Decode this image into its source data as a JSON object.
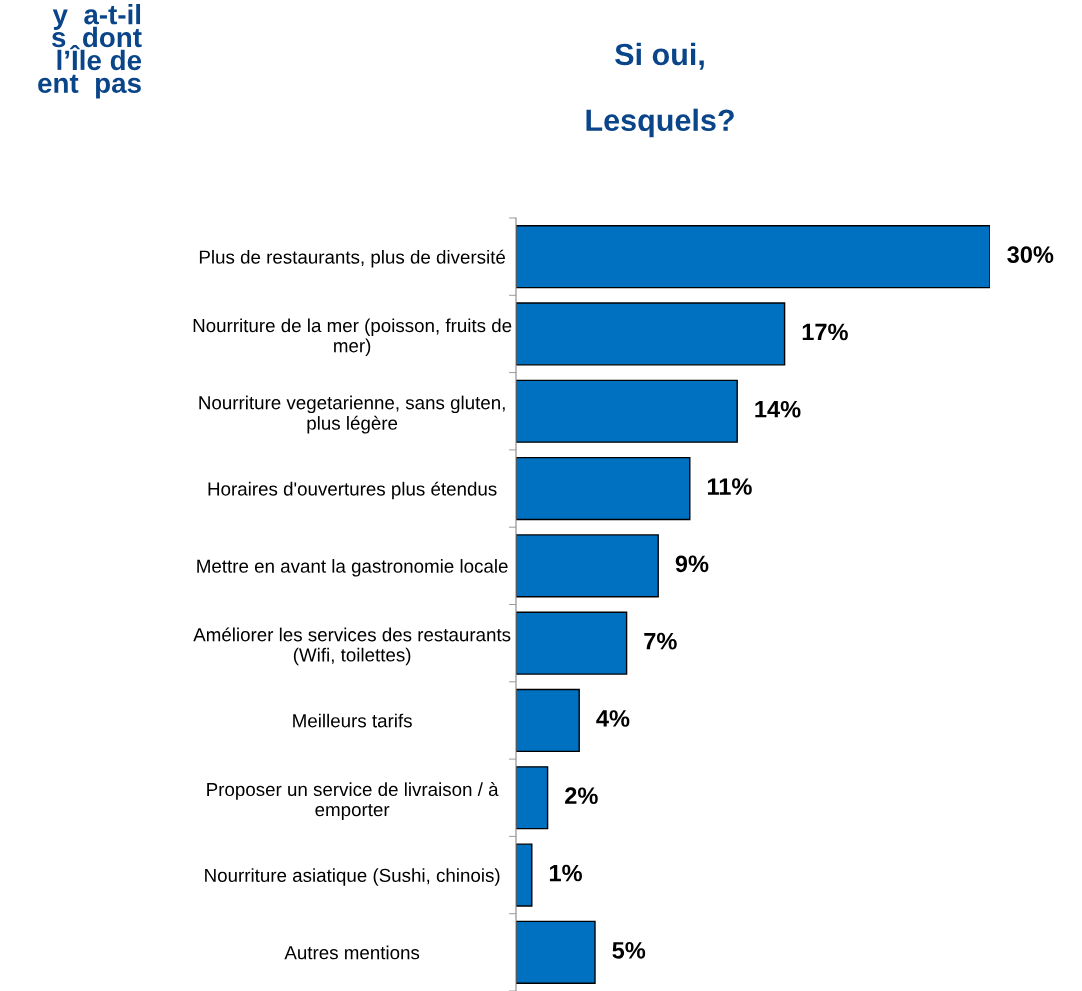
{
  "chart_data": {
    "type": "bar",
    "orientation": "horizontal",
    "title": "Si oui,\n\nLesquels?",
    "annotations": [
      "y  a-t-il\ns  dont\nl’Île de\nent  pas"
    ],
    "categories": [
      "Plus de restaurants, plus de diversité",
      "Nourriture de la mer (poisson, fruits de\nmer)",
      "Nourriture vegetarienne, sans gluten,\nplus légère",
      "Horaires d'ouvertures plus étendus",
      "Mettre en avant la gastronomie locale",
      "Améliorer les services des restaurants\n(Wifi, toilettes)",
      "Meilleurs tarifs",
      "Proposer un service de livraison / à\nemporter",
      "Nourriture asiatique (Sushi, chinois)",
      "Autres mentions"
    ],
    "values": [
      30,
      17,
      14,
      11,
      9,
      7,
      4,
      2,
      1,
      5
    ],
    "value_labels": [
      "30%",
      "17%",
      "14%",
      "11%",
      "9%",
      "7%",
      "4%",
      "2%",
      "1%",
      "5%"
    ],
    "color": "#0070c0",
    "grid": false,
    "legend": false
  }
}
